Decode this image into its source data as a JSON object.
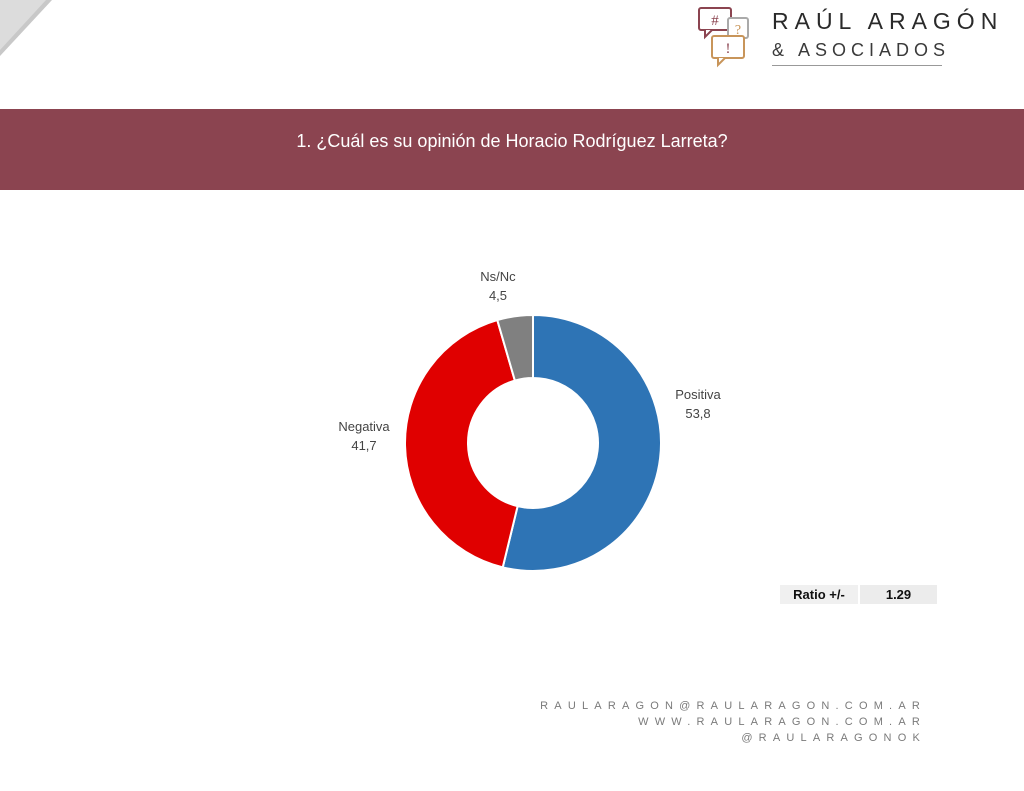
{
  "logo": {
    "name": "RAÚL ARAGÓN",
    "sub": "& ASOCIADOS",
    "bubble_symbols": [
      "#",
      "?",
      "!"
    ]
  },
  "title": "1. ¿Cuál es su opinión de Horacio Rodríguez Larreta?",
  "chart_data": {
    "type": "pie",
    "subtype": "donut",
    "categories": [
      "Positiva",
      "Negativa",
      "Ns/Nc"
    ],
    "values": [
      53.8,
      41.7,
      4.5
    ],
    "value_labels": [
      "53,8",
      "41,7",
      "4,5"
    ],
    "colors": [
      "#2e74b5",
      "#e00000",
      "#808080"
    ],
    "start": "12 o'clock",
    "direction": "clockwise"
  },
  "ratio": {
    "label": "Ratio +/-",
    "value": "1.29"
  },
  "contacts": [
    "RAULARAGON@RAULARAGON.COM.AR",
    "WWW.RAULARAGON.COM.AR",
    "@RAULARAGONOK"
  ],
  "colors": {
    "title_band": "#8b4450",
    "logo_bubble": "#8b4450",
    "logo_bubble_alt": "#c8955a"
  }
}
